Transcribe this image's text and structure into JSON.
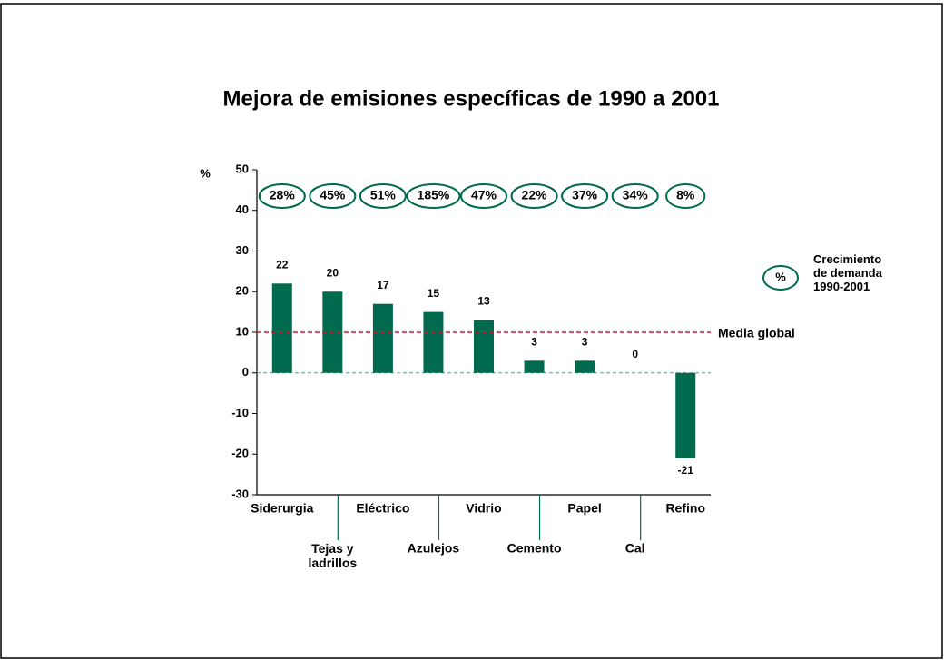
{
  "chart_data": {
    "type": "bar",
    "title": "Mejora de emisiones específicas de 1990 a 2001",
    "y_unit": "%",
    "categories": [
      "Siderurgia",
      "Tejas y\nladrillos",
      "Eléctrico",
      "Azulejos",
      "Vidrio",
      "Cemento",
      "Papel",
      "Cal",
      "Refino"
    ],
    "values": [
      22,
      20,
      17,
      15,
      13,
      3,
      3,
      0,
      -21
    ],
    "color": "#006a4e",
    "ylim": [
      -30,
      50
    ],
    "yticks": [
      -30,
      -20,
      -10,
      0,
      10,
      20,
      30,
      40,
      50
    ],
    "reference_line": {
      "label": "Media global",
      "value": 10,
      "color": "#e0102a"
    },
    "growth": {
      "name": "Crecimiento\nde demanda\n1990-2001",
      "symbol": "%",
      "values": [
        28,
        45,
        51,
        185,
        47,
        22,
        37,
        34,
        8
      ],
      "value_labels": [
        "28%",
        "45%",
        "51%",
        "185%",
        "47%",
        "22%",
        "37%",
        "34%",
        "8%"
      ]
    }
  }
}
